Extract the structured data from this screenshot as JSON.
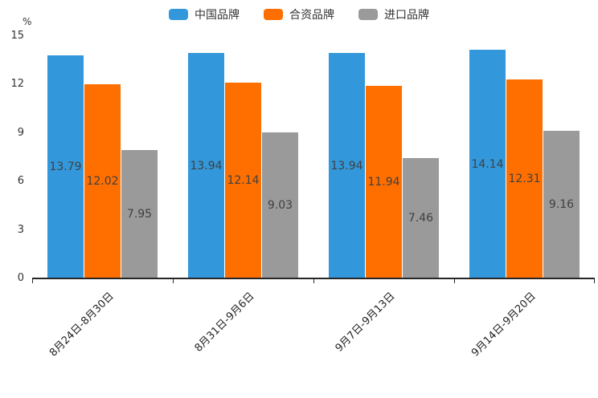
{
  "chart_data": {
    "type": "bar",
    "unit_label": "%",
    "categories": [
      "8月24日-8月30日",
      "8月31日-9月6日",
      "9月7日-9月13日",
      "9月14日-9月20日"
    ],
    "series": [
      {
        "name": "中国品牌",
        "color": "#3398DB",
        "values": [
          13.79,
          13.94,
          13.94,
          14.14
        ]
      },
      {
        "name": "合资品牌",
        "color": "#FF6F00",
        "values": [
          12.02,
          12.14,
          11.94,
          12.31
        ]
      },
      {
        "name": "进口品牌",
        "color": "#9A9A9A",
        "values": [
          7.95,
          9.03,
          7.46,
          9.16
        ]
      }
    ],
    "y_axis": {
      "min": 0,
      "max": 15,
      "ticks": [
        0,
        3,
        6,
        9,
        12,
        15
      ]
    },
    "legend_position": "top",
    "grid": false,
    "label_position": "inside-center",
    "axis_color": "#262626",
    "value_label_color": "#404040"
  }
}
